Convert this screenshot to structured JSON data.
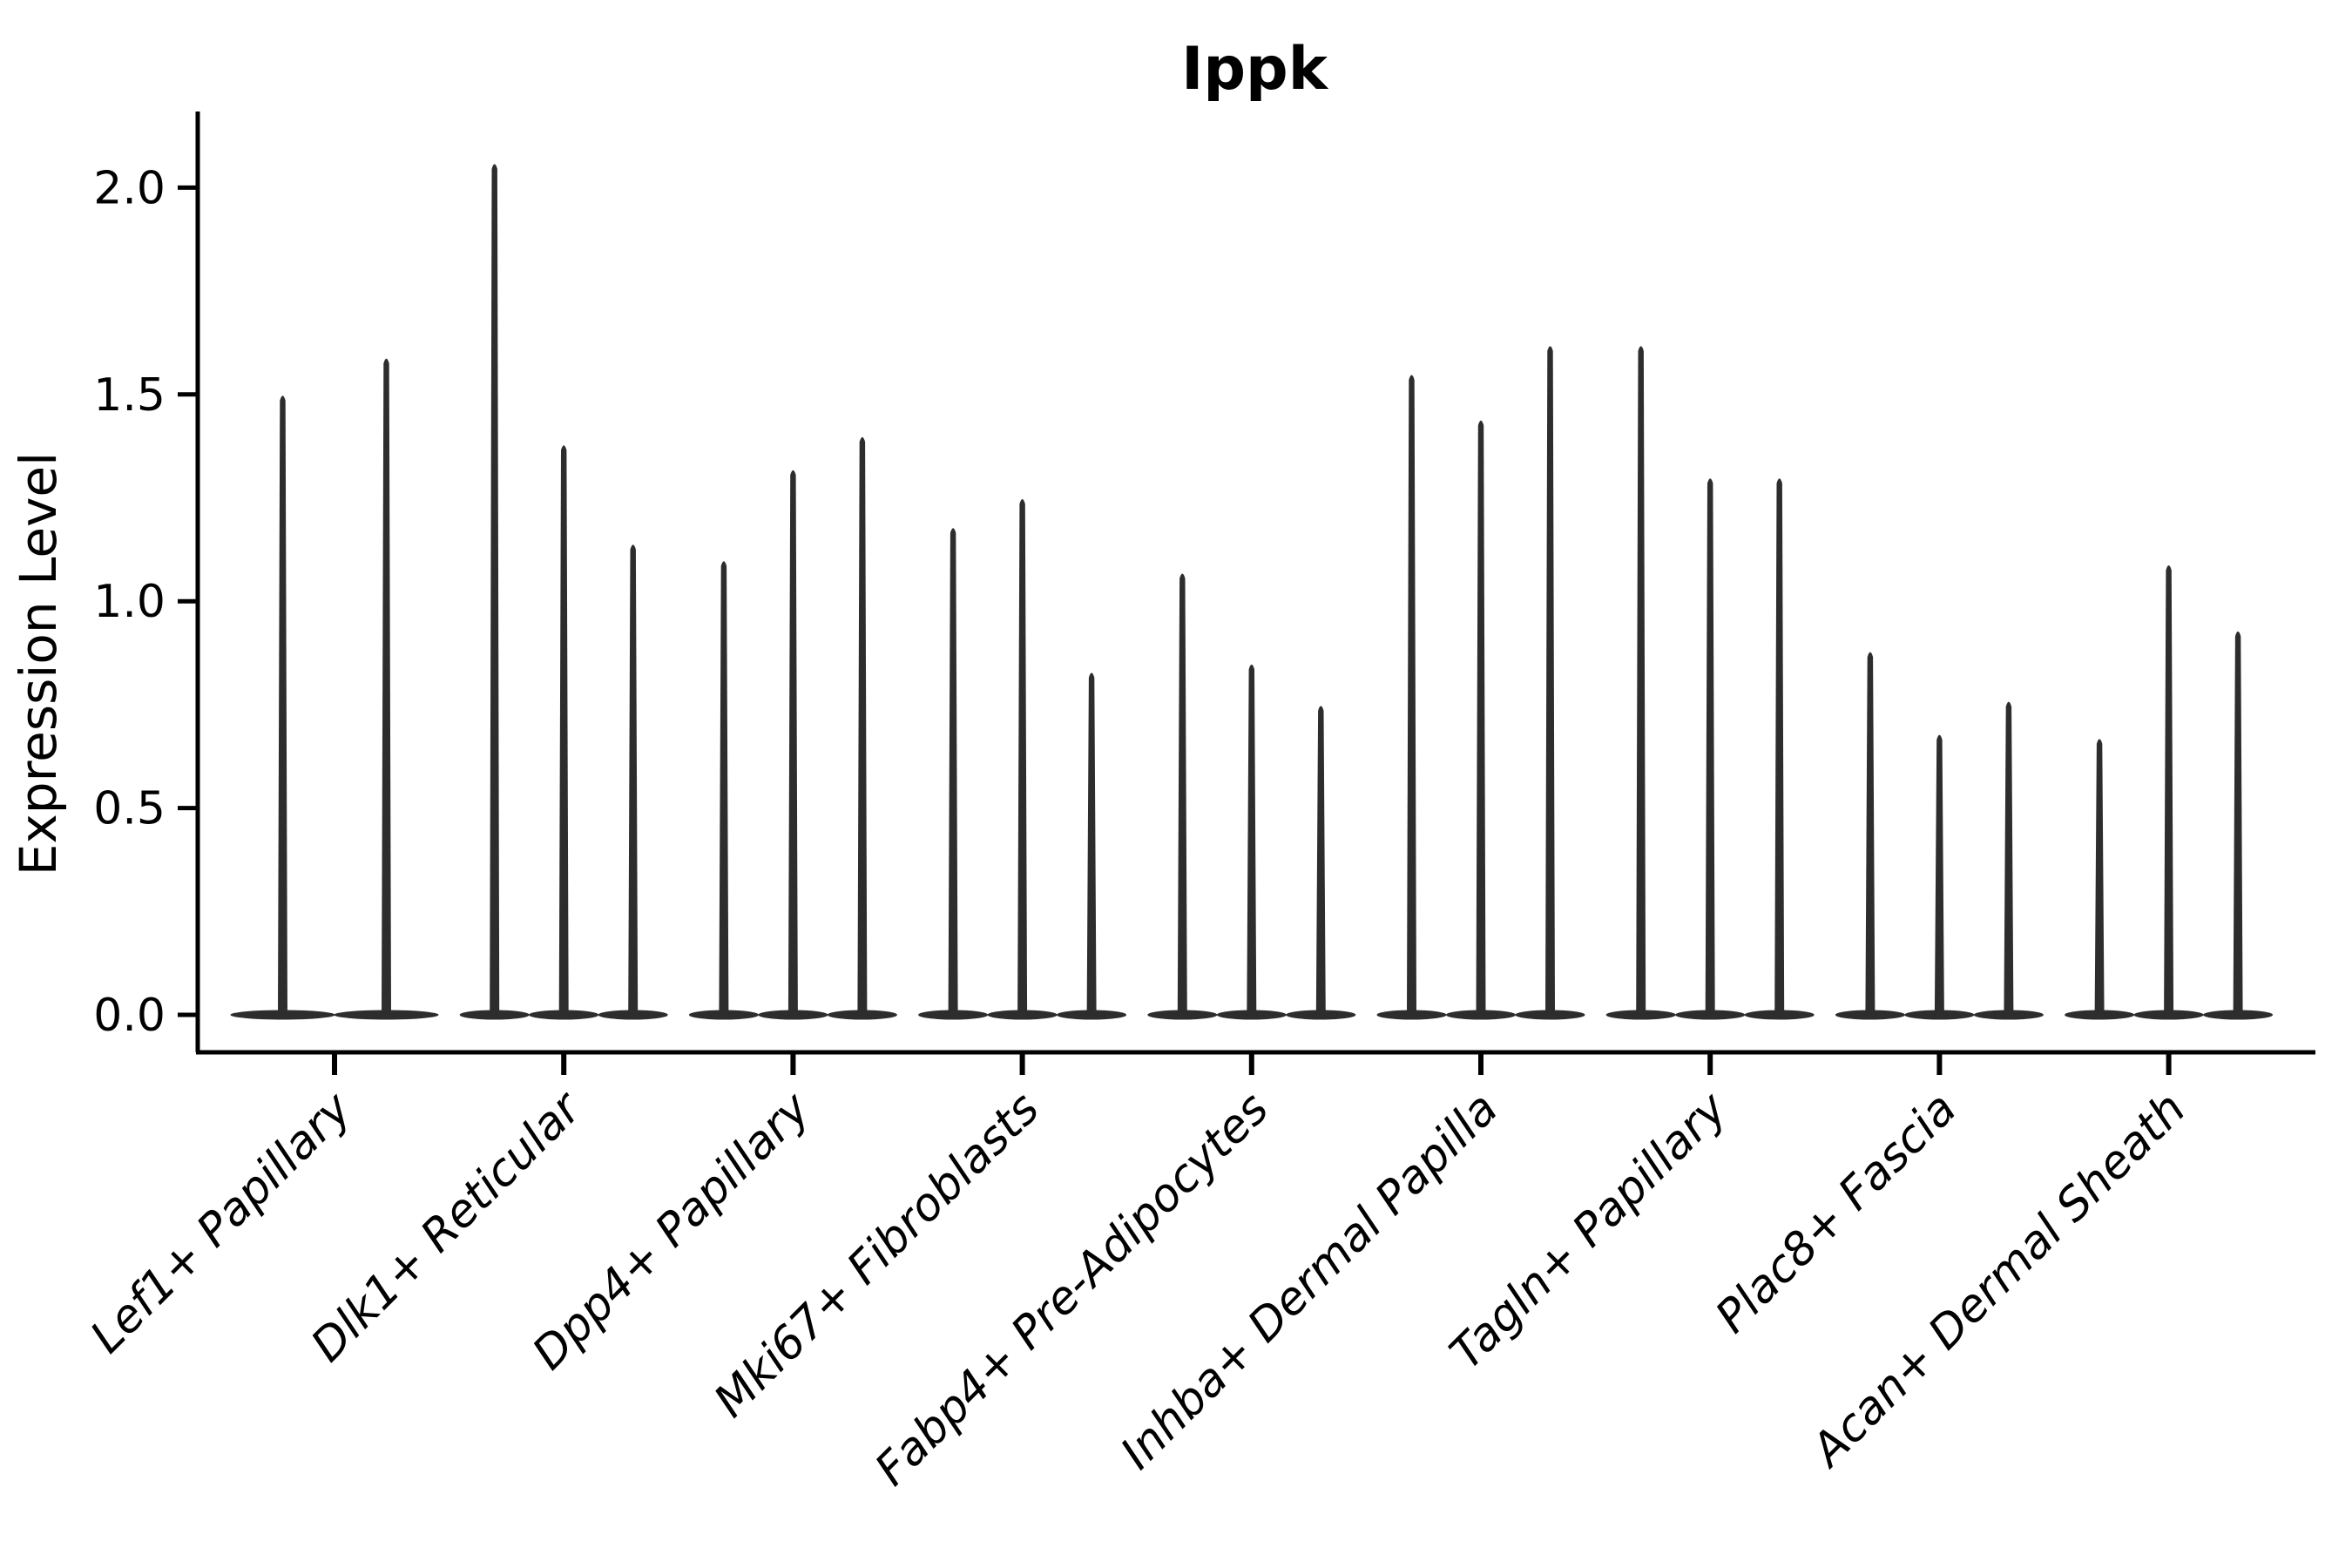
{
  "title": "Ippk",
  "axes": {
    "ylabel": "Expression Level"
  },
  "colors": {
    "violin_fill": "#2d2d2d",
    "axis_line": "#000000",
    "text": "#000000",
    "background": "#ffffff"
  },
  "chart_data": {
    "type": "violin",
    "title": "Ippk",
    "xlabel": "",
    "ylabel": "Expression Level",
    "ylim": [
      0,
      2.18
    ],
    "yticks": [
      2.0,
      1.5,
      1.0,
      0.5,
      0.0
    ],
    "ytick_labels": [
      "2.0",
      "1.5",
      "1.0",
      "0.5",
      "0.0"
    ],
    "grid": false,
    "legend_position": "none",
    "x_label_rotation_deg": 45,
    "categories": [
      "Lef1+ Papillary",
      "Dlk1+ Reticular",
      "Dpp4+ Papillary",
      "Mki67+ Fibroblasts",
      "Fabp4+ Pre-Adipocytes",
      "Inhba+ Dermal Papilla",
      "Tagln+ Papillary",
      "Plac8+ Fascia",
      "Acan+ Dermal Sheath"
    ],
    "violins": [
      {
        "category": "Lef1+ Papillary",
        "baseline_value": 0.0,
        "max_values": [
          1.5,
          1.59
        ]
      },
      {
        "category": "Dlk1+ Reticular",
        "baseline_value": 0.0,
        "max_values": [
          2.06,
          1.38,
          1.14
        ]
      },
      {
        "category": "Dpp4+ Papillary",
        "baseline_value": 0.0,
        "max_values": [
          1.1,
          1.32,
          1.4
        ]
      },
      {
        "category": "Mki67+ Fibroblasts",
        "baseline_value": 0.0,
        "max_values": [
          1.18,
          1.25,
          0.83
        ]
      },
      {
        "category": "Fabp4+ Pre-Adipocytes",
        "baseline_value": 0.0,
        "max_values": [
          1.07,
          0.85,
          0.75
        ]
      },
      {
        "category": "Inhba+ Dermal Papilla",
        "baseline_value": 0.0,
        "max_values": [
          1.55,
          1.44,
          1.62
        ]
      },
      {
        "category": "Tagln+ Papillary",
        "baseline_value": 0.0,
        "max_values": [
          1.62,
          1.3,
          1.3
        ]
      },
      {
        "category": "Plac8+ Fascia",
        "baseline_value": 0.0,
        "max_values": [
          0.88,
          0.68,
          0.76
        ]
      },
      {
        "category": "Acan+ Dermal Sheath",
        "baseline_value": 0.0,
        "max_values": [
          0.67,
          1.09,
          0.93
        ]
      }
    ]
  }
}
